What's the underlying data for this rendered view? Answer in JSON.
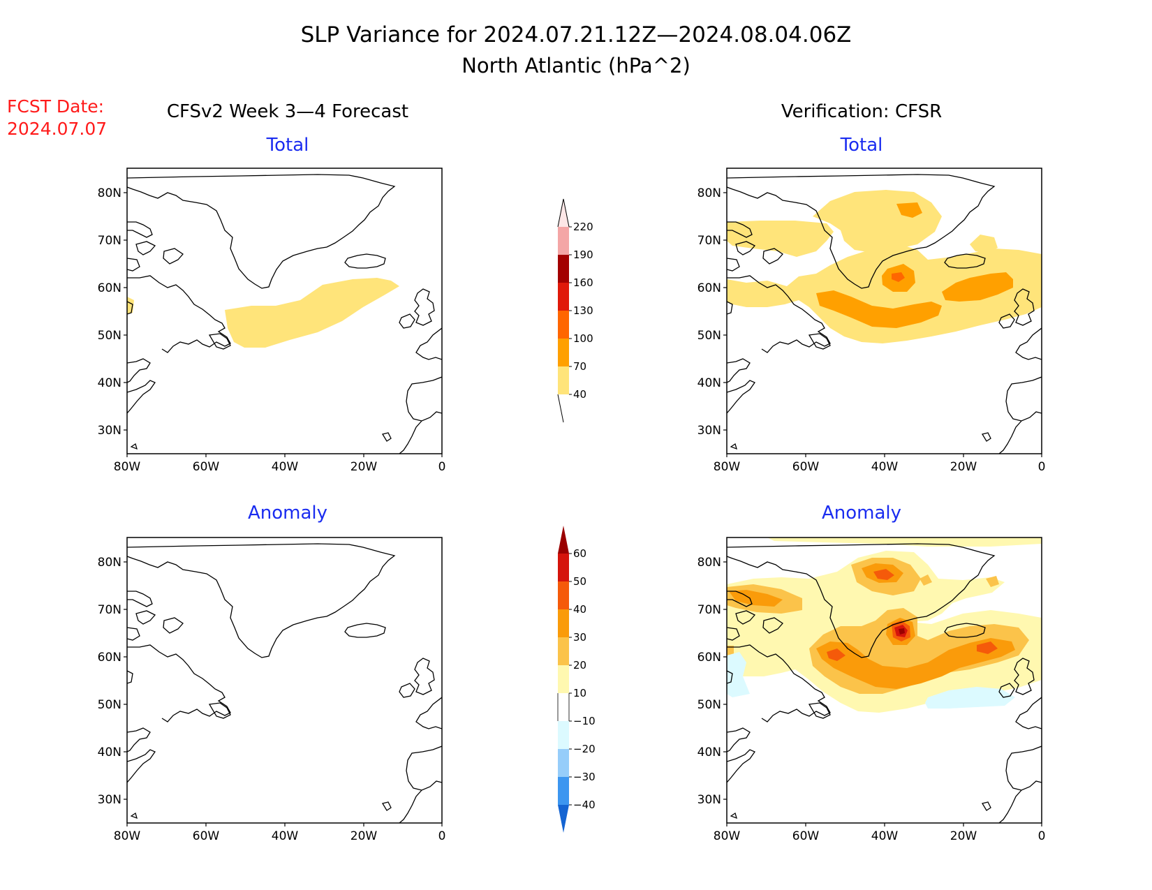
{
  "title": {
    "line1": "SLP Variance for 2024.07.21.12Z—2024.08.04.06Z",
    "line2": "North Atlantic (hPa^2)"
  },
  "fcst": {
    "label": "FCST Date:",
    "date": "2024.07.07"
  },
  "columns": {
    "left": "CFSv2 Week 3—4 Forecast",
    "right": "Verification: CFSR"
  },
  "panels": {
    "tl": "Total",
    "tr": "Total",
    "bl": "Anomaly",
    "br": "Anomaly"
  },
  "axes": {
    "lat_labels": [
      "80N",
      "70N",
      "60N",
      "50N",
      "40N",
      "30N"
    ],
    "lon_labels": [
      "80W",
      "60W",
      "40W",
      "20W",
      "0"
    ]
  },
  "colors": {
    "title_blue": "#1a2cf0",
    "fcst_red": "#ff1a1a"
  },
  "colorbar_total": {
    "labels": [
      "220",
      "190",
      "160",
      "130",
      "100",
      "70",
      "40"
    ],
    "colors": [
      "#fde7e7",
      "#f4a6a6",
      "#a30000",
      "#e0190a",
      "#ff6600",
      "#ffa000",
      "#ffe47a"
    ]
  },
  "colorbar_anomaly": {
    "labels": [
      "60",
      "50",
      "40",
      "30",
      "20",
      "10",
      "−10",
      "−20",
      "−30",
      "−40"
    ],
    "colors": [
      "#9a0000",
      "#d5140c",
      "#f55a0a",
      "#fa9b0a",
      "#fbc34a",
      "#fff8b0",
      "#ffffff",
      "#dcfaff",
      "#96cdfa",
      "#3c96f0",
      "#1464d2"
    ]
  }
}
